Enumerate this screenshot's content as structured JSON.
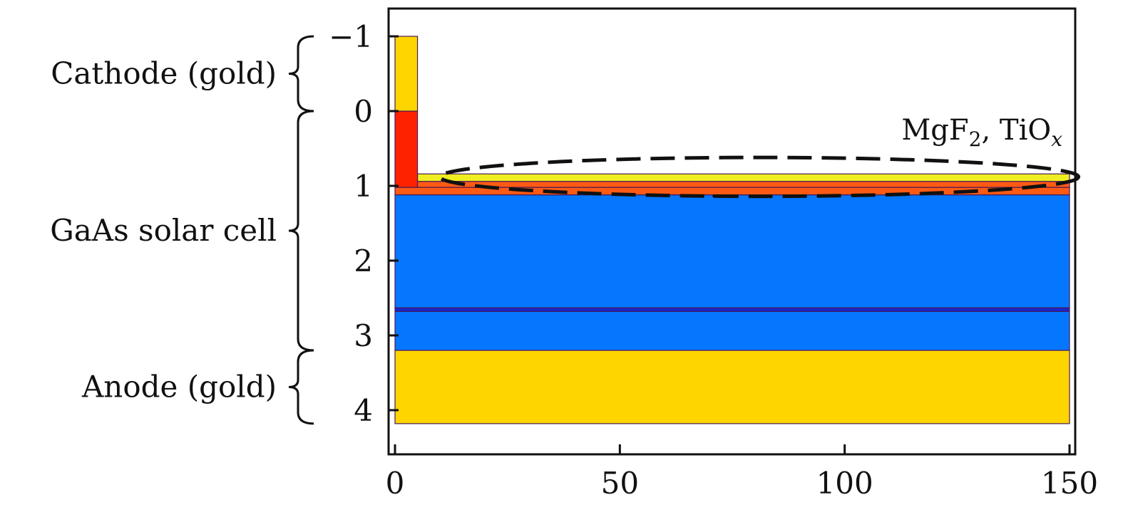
{
  "colors": {
    "gold": "#FFD500",
    "red": "#FF2200",
    "orange": "#FF5A14",
    "blue": "#0577FF",
    "dark_blue": "#1525CC",
    "yellow_coating": "#EEEE20",
    "axis": "#111111"
  },
  "diagram": {
    "x_axis": {
      "min": 0,
      "max": 150,
      "ticks": [
        {
          "value": 0,
          "label": "0"
        },
        {
          "value": 50,
          "label": "50"
        },
        {
          "value": 100,
          "label": "100"
        },
        {
          "value": 150,
          "label": "150"
        }
      ]
    },
    "y_axis": {
      "min": -1.4,
      "max": 4.6,
      "inverted": true,
      "ticks": [
        {
          "value": -1,
          "label": "−1"
        },
        {
          "value": 0,
          "label": "0"
        },
        {
          "value": 1,
          "label": "1"
        },
        {
          "value": 2,
          "label": "2"
        },
        {
          "value": 3,
          "label": "3"
        },
        {
          "value": 4,
          "label": "4"
        }
      ]
    },
    "layers": [
      {
        "name": "anode-gold-layer",
        "x0": 0,
        "x1": 150,
        "y0": 3.2,
        "y1": 4.18,
        "color": "gold"
      },
      {
        "name": "gaas-lower-layer",
        "x0": 0,
        "x1": 150,
        "y0": 2.68,
        "y1": 3.2,
        "color": "blue"
      },
      {
        "name": "gaas-thin-layer",
        "x0": 0,
        "x1": 150,
        "y0": 2.63,
        "y1": 2.68,
        "color": "dark_blue"
      },
      {
        "name": "gaas-upper-layer",
        "x0": 0,
        "x1": 150,
        "y0": 1.12,
        "y1": 2.63,
        "color": "blue"
      },
      {
        "name": "window-layer",
        "x0": 0,
        "x1": 150,
        "y0": 1.02,
        "y1": 1.12,
        "color": "orange"
      },
      {
        "name": "contact-layer",
        "x0": 5,
        "x1": 150,
        "y0": 0.94,
        "y1": 1.02,
        "color": "orange"
      },
      {
        "name": "coating-layer",
        "x0": 5,
        "x1": 150,
        "y0": 0.84,
        "y1": 0.94,
        "color": "yellow_coating"
      },
      {
        "name": "contact-pillar",
        "x0": 0,
        "x1": 5,
        "y0": 0,
        "y1": 1.02,
        "color": "red"
      },
      {
        "name": "cathode-gold-pillar",
        "x0": 0,
        "x1": 5,
        "y0": -1,
        "y1": 0,
        "color": "gold"
      }
    ],
    "regions": [
      {
        "label": "Cathode (gold)",
        "y0": -1,
        "y1": 0
      },
      {
        "label": "GaAs solar cell",
        "y0": 0,
        "y1": 3.2
      },
      {
        "label": "Anode (gold)",
        "y0": 3.2,
        "y1": 4.18
      }
    ],
    "annotation": {
      "part1": "MgF",
      "sub1": "2",
      "part2": ", TiO",
      "sub2": "x",
      "ellipse_center_x": 81,
      "ellipse_center_y": 0.88,
      "ellipse_half_width_x": 71,
      "ellipse_half_height_y": 0.26
    }
  }
}
